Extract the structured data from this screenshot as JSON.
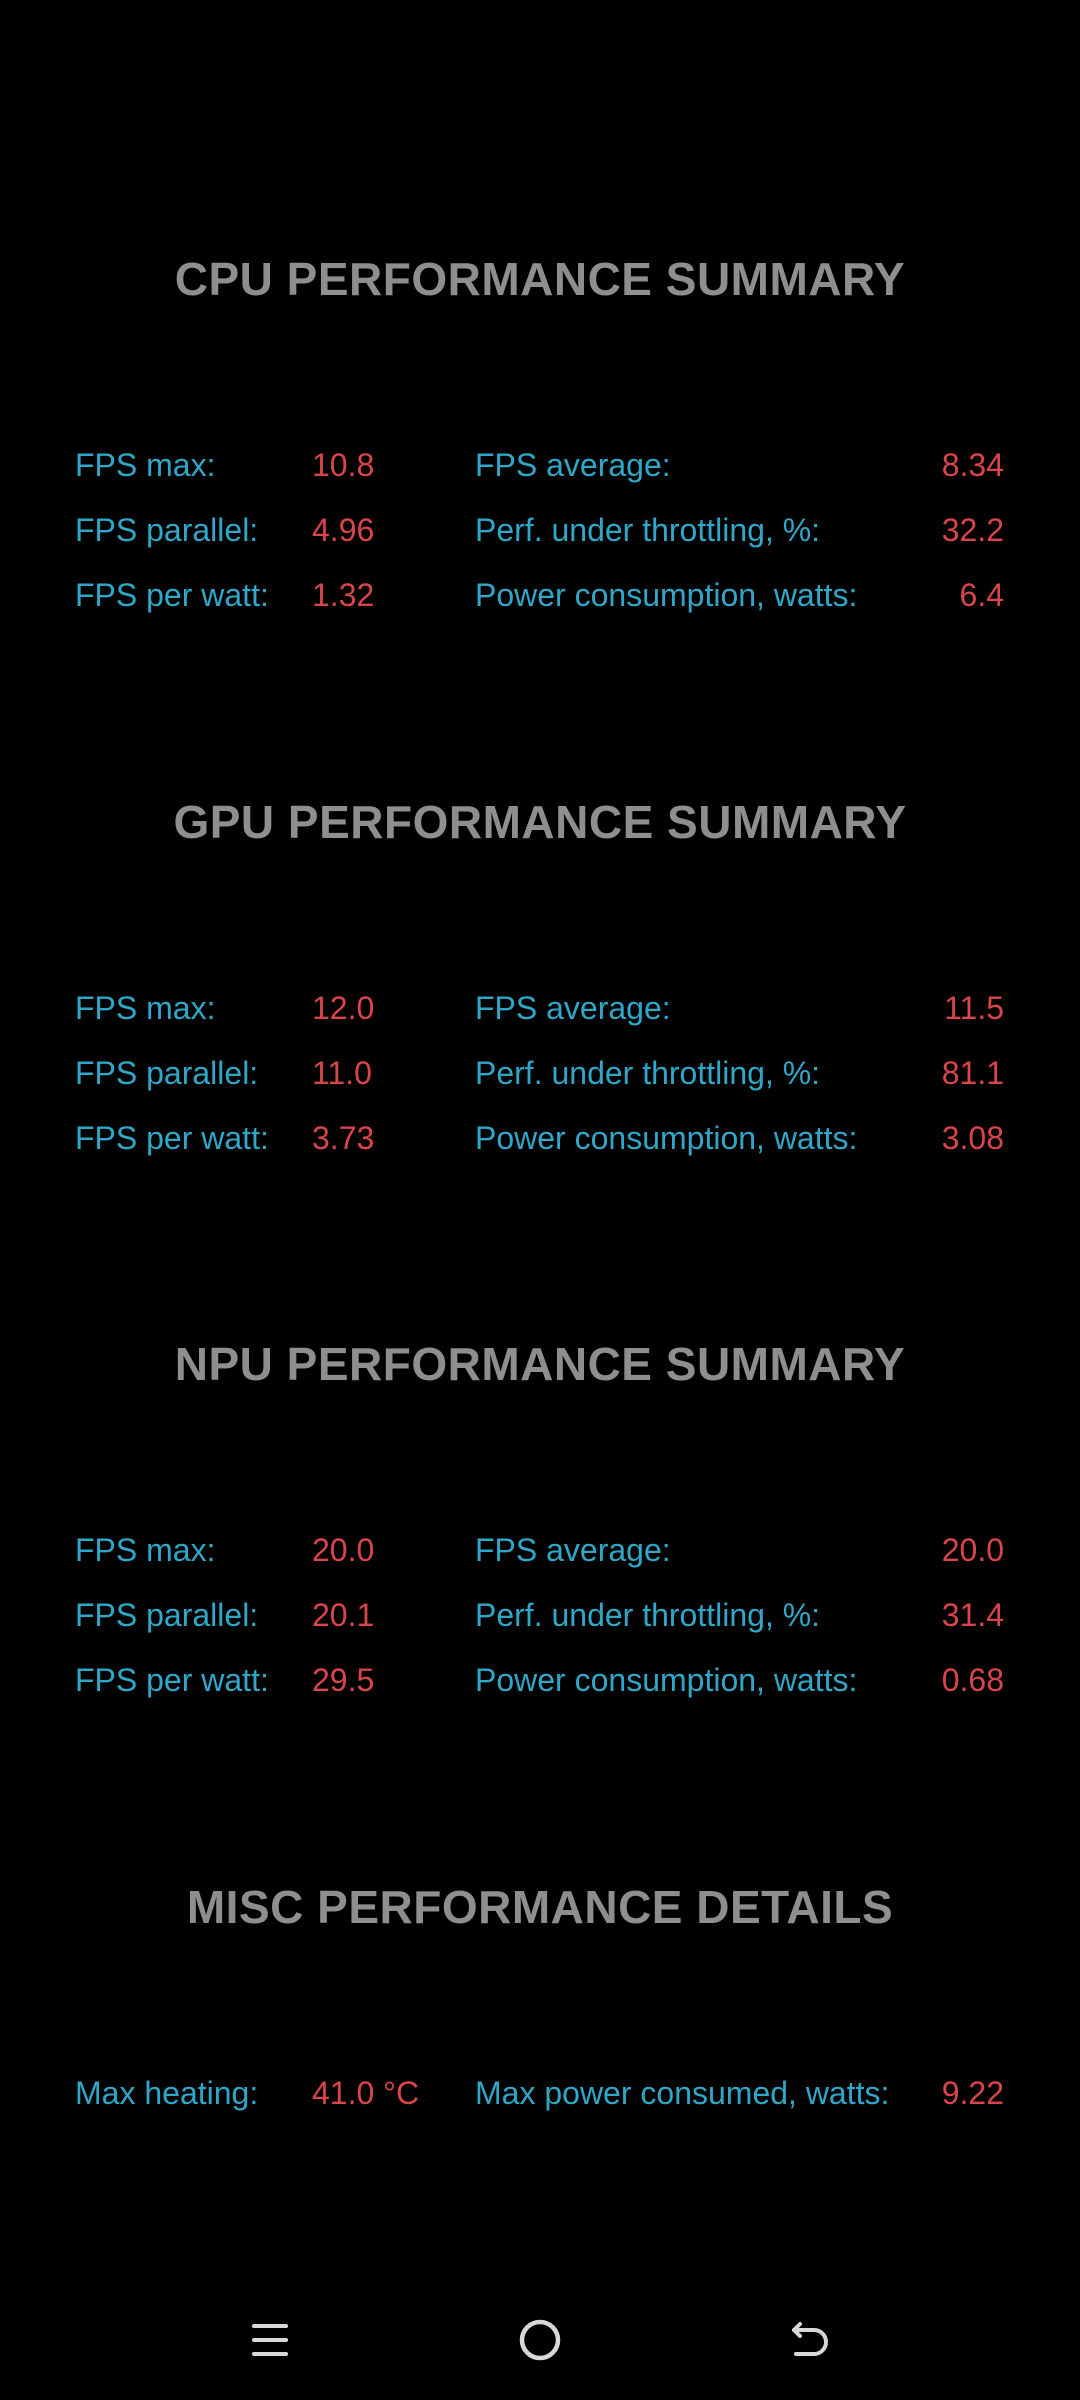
{
  "sections": [
    {
      "title": "CPU PERFORMANCE SUMMARY",
      "rows": [
        {
          "label1": "FPS max:",
          "value1": "10.8",
          "label2": "FPS average:",
          "value2": "8.34"
        },
        {
          "label1": "FPS parallel:",
          "value1": "4.96",
          "label2": "Perf. under throttling, %:",
          "value2": "32.2"
        },
        {
          "label1": "FPS per watt:",
          "value1": "1.32",
          "label2": "Power consumption, watts:",
          "value2": "6.4"
        }
      ]
    },
    {
      "title": "GPU PERFORMANCE SUMMARY",
      "rows": [
        {
          "label1": "FPS max:",
          "value1": "12.0",
          "label2": "FPS average:",
          "value2": "11.5"
        },
        {
          "label1": "FPS parallel:",
          "value1": "11.0",
          "label2": "Perf. under throttling, %:",
          "value2": "81.1"
        },
        {
          "label1": "FPS per watt:",
          "value1": "3.73",
          "label2": "Power consumption, watts:",
          "value2": "3.08"
        }
      ]
    },
    {
      "title": "NPU PERFORMANCE SUMMARY",
      "rows": [
        {
          "label1": "FPS max:",
          "value1": "20.0",
          "label2": "FPS average:",
          "value2": "20.0"
        },
        {
          "label1": "FPS parallel:",
          "value1": "20.1",
          "label2": "Perf. under throttling, %:",
          "value2": "31.4"
        },
        {
          "label1": "FPS per watt:",
          "value1": "29.5",
          "label2": "Power consumption, watts:",
          "value2": "0.68"
        }
      ]
    },
    {
      "title": "MISC PERFORMANCE DETAILS",
      "rows": [
        {
          "label1": "Max heating:",
          "value1": "41.0 °C",
          "label2": "Max power consumed, watts:",
          "value2": "9.22"
        }
      ]
    }
  ],
  "colors": {
    "background": "#000000",
    "title": "#8e8e8e",
    "label": "#2fa7c9",
    "value": "#d9454a",
    "nav_icon": "#d8d8d8"
  },
  "navbar": {
    "buttons": [
      {
        "name": "recent-apps-icon"
      },
      {
        "name": "home-icon"
      },
      {
        "name": "back-icon"
      }
    ]
  }
}
